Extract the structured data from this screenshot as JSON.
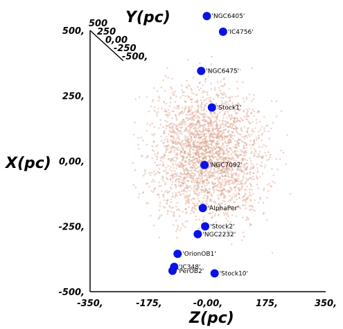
{
  "chart_data": {
    "type": "scatter",
    "title": "",
    "xlabel": "Z(pc)",
    "ylabel": "X(pc)",
    "zlabel": "Y(pc)",
    "xlim": [
      -350,
      350
    ],
    "ylim": [
      -500,
      500
    ],
    "x_ticks": [
      "-350,",
      "-175,",
      "-0,00,",
      "175,",
      "350,"
    ],
    "y_ticks": [
      "500,",
      "250,",
      "0,00,",
      "-250,",
      "-500,"
    ],
    "y_ticks_plain": [
      "500,",
      "250,",
      "0,00,",
      "-250,",
      "-500,"
    ],
    "depth_ticks": [
      "500",
      "250",
      "0,00",
      "-250",
      "-500,"
    ],
    "background_cloud": {
      "description_color": "#d9a08a",
      "center": [
        0,
        30
      ],
      "radius": [
        150,
        230
      ],
      "count": 2600
    },
    "clusters": [
      {
        "label": "'NGC6405'",
        "z": -3,
        "x": 555
      },
      {
        "label": "'IC4756'",
        "z": 45,
        "x": 495
      },
      {
        "label": "'NGC6475'",
        "z": -20,
        "x": 345
      },
      {
        "label": "'Stock1'",
        "z": 12,
        "x": 205
      },
      {
        "label": "'NGC7092'",
        "z": -10,
        "x": -15
      },
      {
        "label": "'AlphaPer'",
        "z": -15,
        "x": -180
      },
      {
        "label": "'Stock2'",
        "z": -8,
        "x": -250
      },
      {
        "label": "'NGC2232'",
        "z": -30,
        "x": -280
      },
      {
        "label": "'OrionOB1'",
        "z": -90,
        "x": -355
      },
      {
        "label": "'IC348'",
        "z": -100,
        "x": -405
      },
      {
        "label": "'PerOB2'",
        "z": -105,
        "x": -420
      },
      {
        "label": "'Stock10'",
        "z": 20,
        "x": -430
      }
    ],
    "colors": {
      "cluster": "#0a12e6",
      "cloud": "#d9a08a",
      "axis": "#000000"
    }
  }
}
